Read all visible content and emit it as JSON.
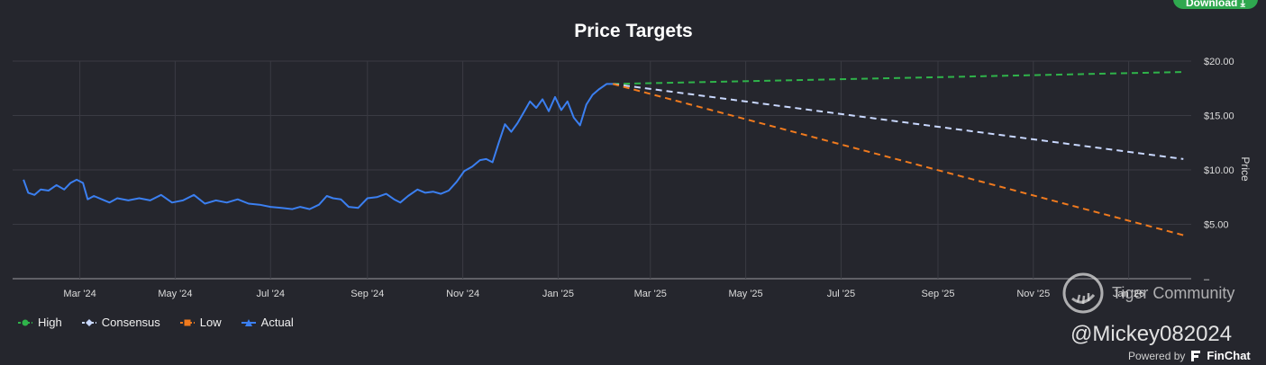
{
  "toolbar": {
    "download_label": "Download ⤓"
  },
  "branding": {
    "watermark": "Tiger Community",
    "handle": "@Mickey082024",
    "powered_by": "Powered by",
    "powered_brand": "FinChat"
  },
  "colors": {
    "background": "#25262d",
    "grid": "#3a3b43",
    "actual": "#3b7ff0",
    "high": "#2fb34a",
    "consensus": "#c9d8ff",
    "low": "#f07a1e"
  },
  "chart_data": {
    "type": "line",
    "title": "Price Targets",
    "ylabel": "Price",
    "xlabel": "",
    "ylim": [
      0,
      20
    ],
    "y_ticks": [
      0,
      5,
      10,
      15,
      20
    ],
    "y_tick_labels": [
      "–",
      "$5.00",
      "$10.00",
      "$15.00",
      "$20.00"
    ],
    "x_range": [
      "2024-01-18",
      "2026-02-10"
    ],
    "x_ticks": [
      {
        "date": "2024-03-01",
        "label": "Mar '24"
      },
      {
        "date": "2024-05-01",
        "label": "May '24"
      },
      {
        "date": "2024-07-01",
        "label": "Jul '24"
      },
      {
        "date": "2024-09-01",
        "label": "Sep '24"
      },
      {
        "date": "2024-11-01",
        "label": "Nov '24"
      },
      {
        "date": "2025-01-01",
        "label": "Jan '25"
      },
      {
        "date": "2025-03-01",
        "label": "Mar '25"
      },
      {
        "date": "2025-05-01",
        "label": "May '25"
      },
      {
        "date": "2025-07-01",
        "label": "Jul '25"
      },
      {
        "date": "2025-09-01",
        "label": "Sep '25"
      },
      {
        "date": "2025-11-01",
        "label": "Nov '25"
      },
      {
        "date": "2026-01-01",
        "label": "Jan '26"
      }
    ],
    "grid": true,
    "legend_position": "bottom-left",
    "series": [
      {
        "name": "High",
        "style": "dashed",
        "marker": "circle",
        "points": [
          [
            "2025-02-05",
            17.9
          ],
          [
            "2026-02-05",
            19.0
          ]
        ]
      },
      {
        "name": "Consensus",
        "style": "dashed",
        "marker": "diamond",
        "points": [
          [
            "2025-02-05",
            17.9
          ],
          [
            "2026-02-05",
            11.0
          ]
        ]
      },
      {
        "name": "Low",
        "style": "dashed",
        "marker": "square",
        "points": [
          [
            "2025-02-05",
            17.9
          ],
          [
            "2026-02-05",
            4.0
          ]
        ]
      },
      {
        "name": "Actual",
        "style": "solid",
        "marker": "triangle",
        "points": [
          [
            "2024-01-25",
            9.1
          ],
          [
            "2024-01-28",
            7.9
          ],
          [
            "2024-02-01",
            7.7
          ],
          [
            "2024-02-05",
            8.2
          ],
          [
            "2024-02-10",
            8.1
          ],
          [
            "2024-02-15",
            8.6
          ],
          [
            "2024-02-20",
            8.2
          ],
          [
            "2024-02-24",
            8.8
          ],
          [
            "2024-02-28",
            9.1
          ],
          [
            "2024-03-03",
            8.8
          ],
          [
            "2024-03-06",
            7.3
          ],
          [
            "2024-03-10",
            7.6
          ],
          [
            "2024-03-15",
            7.3
          ],
          [
            "2024-03-20",
            7.0
          ],
          [
            "2024-03-25",
            7.4
          ],
          [
            "2024-04-01",
            7.2
          ],
          [
            "2024-04-08",
            7.4
          ],
          [
            "2024-04-15",
            7.2
          ],
          [
            "2024-04-22",
            7.7
          ],
          [
            "2024-04-29",
            7.0
          ],
          [
            "2024-05-06",
            7.2
          ],
          [
            "2024-05-13",
            7.7
          ],
          [
            "2024-05-20",
            6.9
          ],
          [
            "2024-05-27",
            7.2
          ],
          [
            "2024-06-03",
            7.0
          ],
          [
            "2024-06-10",
            7.3
          ],
          [
            "2024-06-17",
            6.9
          ],
          [
            "2024-06-24",
            6.8
          ],
          [
            "2024-07-01",
            6.6
          ],
          [
            "2024-07-08",
            6.5
          ],
          [
            "2024-07-15",
            6.4
          ],
          [
            "2024-07-20",
            6.6
          ],
          [
            "2024-07-26",
            6.4
          ],
          [
            "2024-08-01",
            6.8
          ],
          [
            "2024-08-06",
            7.6
          ],
          [
            "2024-08-10",
            7.4
          ],
          [
            "2024-08-15",
            7.3
          ],
          [
            "2024-08-20",
            6.6
          ],
          [
            "2024-08-26",
            6.5
          ],
          [
            "2024-09-01",
            7.4
          ],
          [
            "2024-09-07",
            7.5
          ],
          [
            "2024-09-13",
            7.8
          ],
          [
            "2024-09-18",
            7.3
          ],
          [
            "2024-09-22",
            7.0
          ],
          [
            "2024-09-27",
            7.6
          ],
          [
            "2024-10-03",
            8.2
          ],
          [
            "2024-10-08",
            7.9
          ],
          [
            "2024-10-13",
            8.0
          ],
          [
            "2024-10-18",
            7.8
          ],
          [
            "2024-10-23",
            8.1
          ],
          [
            "2024-10-28",
            8.9
          ],
          [
            "2024-11-02",
            9.9
          ],
          [
            "2024-11-07",
            10.3
          ],
          [
            "2024-11-12",
            10.9
          ],
          [
            "2024-11-16",
            11.0
          ],
          [
            "2024-11-20",
            10.7
          ],
          [
            "2024-11-24",
            12.5
          ],
          [
            "2024-11-28",
            14.2
          ],
          [
            "2024-12-02",
            13.5
          ],
          [
            "2024-12-06",
            14.3
          ],
          [
            "2024-12-10",
            15.3
          ],
          [
            "2024-12-14",
            16.3
          ],
          [
            "2024-12-18",
            15.7
          ],
          [
            "2024-12-22",
            16.5
          ],
          [
            "2024-12-26",
            15.4
          ],
          [
            "2024-12-30",
            16.7
          ],
          [
            "2025-01-03",
            15.5
          ],
          [
            "2025-01-07",
            16.3
          ],
          [
            "2025-01-11",
            14.8
          ],
          [
            "2025-01-15",
            14.1
          ],
          [
            "2025-01-19",
            16.0
          ],
          [
            "2025-01-23",
            16.9
          ],
          [
            "2025-01-27",
            17.4
          ],
          [
            "2025-02-01",
            17.9
          ],
          [
            "2025-02-05",
            17.9
          ]
        ]
      }
    ]
  }
}
